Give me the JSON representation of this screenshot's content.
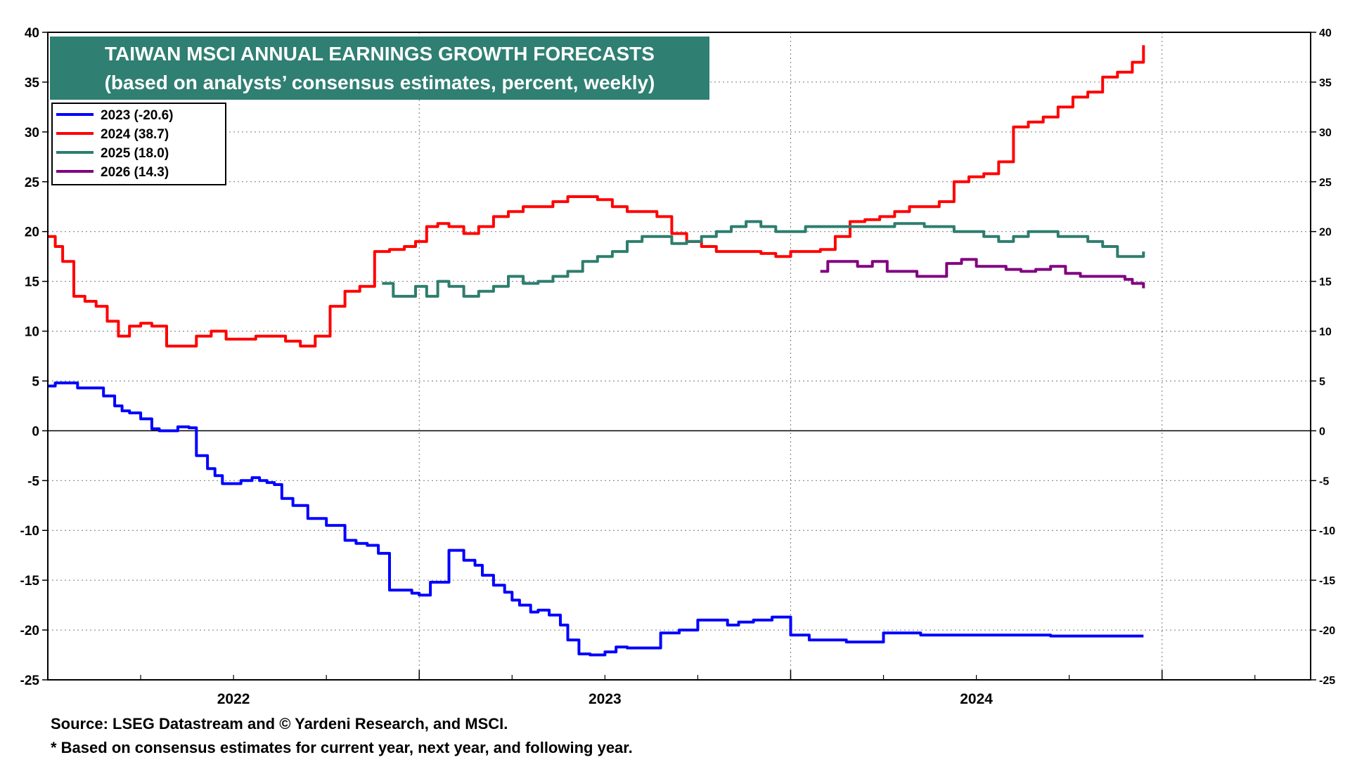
{
  "chart_data": {
    "type": "line",
    "title": "TAIWAN MSCI ANNUAL EARNINGS GROWTH FORECASTS",
    "subtitle": "(based on analysts’ consensus estimates, percent, weekly)",
    "ylim": [
      -25,
      40
    ],
    "yticks": [
      40,
      35,
      30,
      25,
      20,
      15,
      10,
      5,
      0,
      -5,
      -10,
      -15,
      -20,
      -25
    ],
    "y_axis_both_sides": true,
    "grid": "horizontal dotted",
    "zero_line": true,
    "xlim": [
      2021.5,
      2024.9
    ],
    "x_major_boundaries": [
      2022.5,
      2023.5,
      2024.5
    ],
    "x_year_labels": [
      {
        "label": "2022",
        "x": 2022.0
      },
      {
        "label": "2023",
        "x": 2023.0
      },
      {
        "label": "2024",
        "x": 2024.0
      }
    ],
    "legend_position": "top-left",
    "colors": {
      "title_bg": "#2f7f72",
      "series_2023": "#0000ff",
      "series_2024": "#ff0000",
      "series_2025": "#2e7d6e",
      "series_2026": "#800080"
    },
    "series": [
      {
        "name": "2023 (-20.6)",
        "color": "#0000ff",
        "x": [
          2021.5,
          2021.52,
          2021.55,
          2021.58,
          2021.62,
          2021.65,
          2021.68,
          2021.7,
          2021.72,
          2021.75,
          2021.78,
          2021.8,
          2021.83,
          2021.85,
          2021.88,
          2021.9,
          2021.93,
          2021.95,
          2021.97,
          2022.0,
          2022.02,
          2022.04,
          2022.05,
          2022.07,
          2022.09,
          2022.11,
          2022.13,
          2022.16,
          2022.2,
          2022.25,
          2022.3,
          2022.33,
          2022.36,
          2022.39,
          2022.42,
          2022.45,
          2022.48,
          2022.5,
          2022.53,
          2022.58,
          2022.62,
          2022.65,
          2022.67,
          2022.7,
          2022.73,
          2022.75,
          2022.77,
          2022.8,
          2022.82,
          2022.85,
          2022.88,
          2022.9,
          2022.93,
          2022.96,
          2023.0,
          2023.03,
          2023.06,
          2023.08,
          2023.1,
          2023.15,
          2023.2,
          2023.25,
          2023.3,
          2023.33,
          2023.36,
          2023.4,
          2023.45,
          2023.5,
          2023.55,
          2023.6,
          2023.65,
          2023.7,
          2023.72,
          2023.75,
          2023.8,
          2023.85,
          2023.9,
          2023.95,
          2024.0,
          2024.1,
          2024.2,
          2024.3,
          2024.4,
          2024.45
        ],
        "values": [
          4.5,
          4.8,
          4.8,
          4.3,
          4.3,
          3.5,
          2.5,
          2.0,
          1.8,
          1.2,
          0.2,
          0.0,
          0.0,
          0.4,
          0.3,
          -2.5,
          -3.8,
          -4.5,
          -5.3,
          -5.3,
          -5.0,
          -5.0,
          -4.7,
          -5.0,
          -5.2,
          -5.4,
          -6.8,
          -7.5,
          -8.8,
          -9.5,
          -11.0,
          -11.3,
          -11.5,
          -12.3,
          -16.0,
          -16.0,
          -16.3,
          -16.5,
          -15.2,
          -12.0,
          -13.0,
          -13.5,
          -14.5,
          -15.5,
          -16.2,
          -17.0,
          -17.5,
          -18.2,
          -18.0,
          -18.5,
          -19.5,
          -21.0,
          -22.4,
          -22.5,
          -22.2,
          -21.7,
          -21.8,
          -21.8,
          -21.8,
          -20.3,
          -20.0,
          -19.0,
          -19.0,
          -19.5,
          -19.2,
          -19.0,
          -18.7,
          -20.5,
          -21.0,
          -21.0,
          -21.2,
          -21.2,
          -21.2,
          -20.3,
          -20.3,
          -20.5,
          -20.5,
          -20.5,
          -20.5,
          -20.5,
          -20.6,
          -20.6,
          -20.6,
          -20.6
        ]
      },
      {
        "name": "2024 (38.7)",
        "color": "#ff0000",
        "x": [
          2021.5,
          2021.52,
          2021.54,
          2021.57,
          2021.6,
          2021.63,
          2021.66,
          2021.69,
          2021.72,
          2021.75,
          2021.78,
          2021.82,
          2021.86,
          2021.9,
          2021.94,
          2021.98,
          2022.02,
          2022.06,
          2022.1,
          2022.14,
          2022.18,
          2022.22,
          2022.26,
          2022.3,
          2022.34,
          2022.38,
          2022.4,
          2022.42,
          2022.46,
          2022.49,
          2022.52,
          2022.55,
          2022.58,
          2022.62,
          2022.66,
          2022.7,
          2022.74,
          2022.78,
          2022.82,
          2022.86,
          2022.9,
          2022.94,
          2022.98,
          2023.02,
          2023.06,
          2023.1,
          2023.14,
          2023.18,
          2023.22,
          2023.26,
          2023.3,
          2023.34,
          2023.38,
          2023.42,
          2023.46,
          2023.5,
          2023.54,
          2023.58,
          2023.62,
          2023.66,
          2023.7,
          2023.74,
          2023.78,
          2023.82,
          2023.86,
          2023.9,
          2023.94,
          2023.98,
          2024.02,
          2024.06,
          2024.1,
          2024.14,
          2024.18,
          2024.22,
          2024.26,
          2024.3,
          2024.34,
          2024.38,
          2024.42,
          2024.45
        ],
        "values": [
          19.5,
          18.5,
          17.0,
          13.5,
          13.0,
          12.5,
          11.0,
          9.5,
          10.5,
          10.8,
          10.5,
          8.5,
          8.5,
          9.5,
          10.0,
          9.2,
          9.2,
          9.5,
          9.5,
          9.0,
          8.5,
          9.5,
          12.5,
          14.0,
          14.5,
          18.0,
          18.0,
          18.2,
          18.5,
          19.0,
          20.5,
          20.8,
          20.5,
          19.8,
          20.5,
          21.5,
          22.0,
          22.5,
          22.5,
          23.0,
          23.5,
          23.5,
          23.2,
          22.5,
          22.0,
          22.0,
          21.5,
          19.8,
          19.0,
          18.5,
          18.0,
          18.0,
          18.0,
          17.8,
          17.5,
          18.0,
          18.0,
          18.2,
          19.5,
          21.0,
          21.2,
          21.5,
          22.0,
          22.5,
          22.5,
          23.0,
          25.0,
          25.5,
          25.8,
          27.0,
          30.5,
          31.0,
          31.5,
          32.5,
          33.5,
          34.0,
          35.5,
          36.0,
          37.0,
          38.7
        ]
      },
      {
        "name": "2025 (18.0)",
        "color": "#2e7d6e",
        "x": [
          2022.4,
          2022.43,
          2022.46,
          2022.49,
          2022.52,
          2022.55,
          2022.58,
          2022.62,
          2022.66,
          2022.7,
          2022.74,
          2022.78,
          2022.82,
          2022.86,
          2022.9,
          2022.94,
          2022.98,
          2023.02,
          2023.06,
          2023.1,
          2023.14,
          2023.18,
          2023.22,
          2023.26,
          2023.3,
          2023.34,
          2023.38,
          2023.42,
          2023.46,
          2023.5,
          2023.54,
          2023.58,
          2023.62,
          2023.66,
          2023.7,
          2023.74,
          2023.78,
          2023.82,
          2023.86,
          2023.9,
          2023.94,
          2023.98,
          2024.02,
          2024.06,
          2024.1,
          2024.14,
          2024.18,
          2024.22,
          2024.26,
          2024.3,
          2024.34,
          2024.38,
          2024.42,
          2024.45
        ],
        "values": [
          14.8,
          13.5,
          13.5,
          14.5,
          13.5,
          15.0,
          14.5,
          13.5,
          14.0,
          14.5,
          15.5,
          14.8,
          15.0,
          15.5,
          16.0,
          17.0,
          17.5,
          18.0,
          19.0,
          19.5,
          19.5,
          18.8,
          19.0,
          19.5,
          20.0,
          20.5,
          21.0,
          20.5,
          20.0,
          20.0,
          20.5,
          20.5,
          20.5,
          20.5,
          20.5,
          20.5,
          20.8,
          20.8,
          20.5,
          20.5,
          20.0,
          20.0,
          19.5,
          19.0,
          19.5,
          20.0,
          20.0,
          19.5,
          19.5,
          19.0,
          18.5,
          17.5,
          17.5,
          18.0
        ]
      },
      {
        "name": "2026 (14.3)",
        "color": "#800080",
        "x": [
          2023.58,
          2023.6,
          2023.64,
          2023.68,
          2023.72,
          2023.76,
          2023.8,
          2023.84,
          2023.88,
          2023.92,
          2023.96,
          2024.0,
          2024.04,
          2024.08,
          2024.12,
          2024.16,
          2024.2,
          2024.24,
          2024.28,
          2024.32,
          2024.36,
          2024.4,
          2024.42,
          2024.45
        ],
        "values": [
          16.0,
          17.0,
          17.0,
          16.5,
          17.0,
          16.0,
          16.0,
          15.5,
          15.5,
          16.8,
          17.2,
          16.5,
          16.5,
          16.2,
          16.0,
          16.2,
          16.5,
          15.8,
          15.5,
          15.5,
          15.5,
          15.2,
          14.8,
          14.3
        ]
      }
    ]
  },
  "footer": {
    "source": "Source: LSEG Datastream and © Yardeni Research, and MSCI.",
    "note": "* Based on consensus estimates for current year, next year, and following year."
  }
}
